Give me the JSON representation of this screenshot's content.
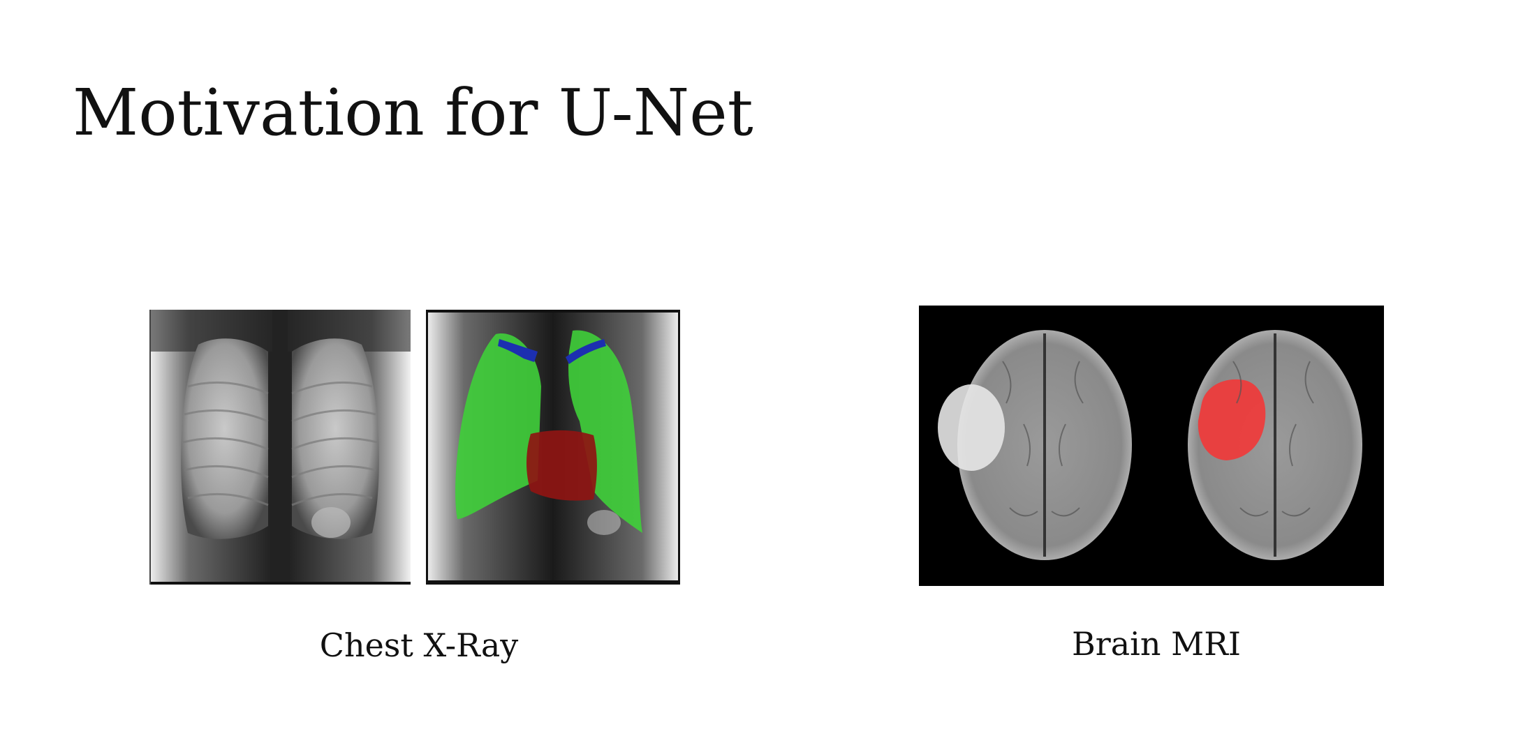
{
  "slide": {
    "title": "Motivation for U-Net"
  },
  "figures": [
    {
      "caption": "Chest X-Ray",
      "images": [
        "chest-xray-original",
        "chest-xray-segmented"
      ]
    },
    {
      "caption": "Brain MRI",
      "images": [
        "brain-mri-original",
        "brain-mri-segmented"
      ]
    }
  ],
  "colors": {
    "lung_mask": "#3fcf3a",
    "clavicle_mask": "#1c2fb0",
    "heart_mask": "#8e1512",
    "tumor_mask": "#f03a3a"
  }
}
